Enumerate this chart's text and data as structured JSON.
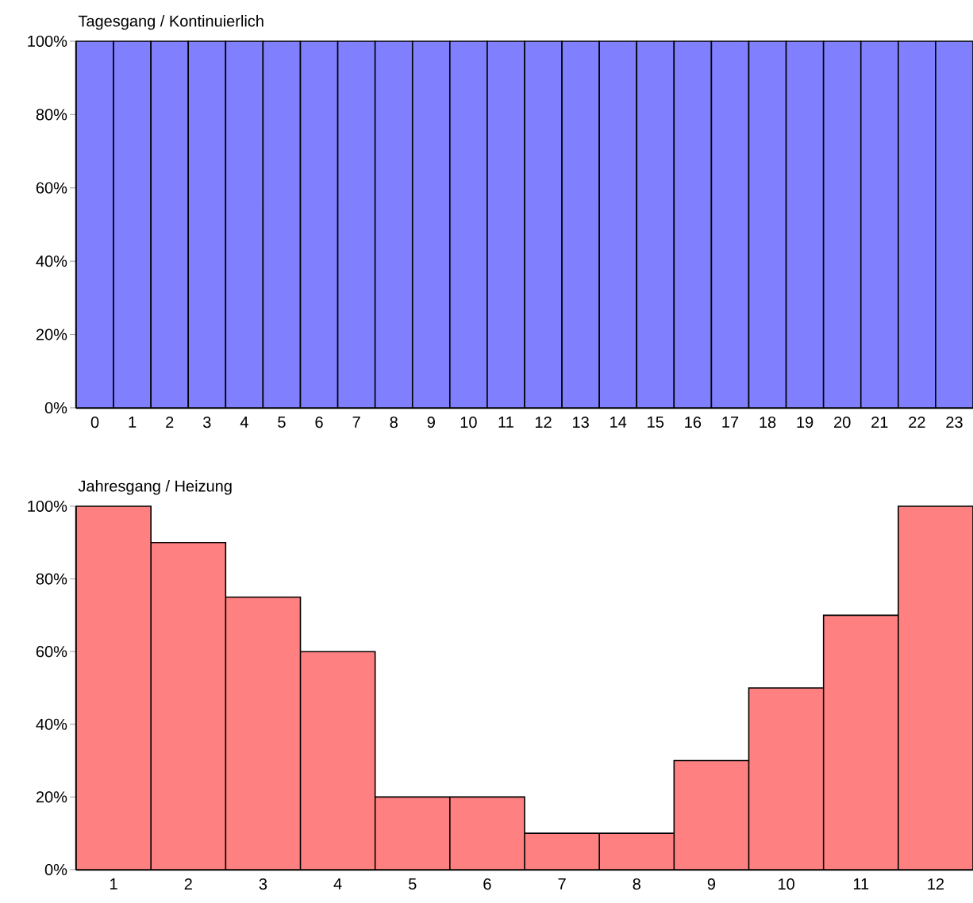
{
  "chart_data": [
    {
      "type": "bar",
      "title": "Tagesgang / Kontinuierlich",
      "categories": [
        "0",
        "1",
        "2",
        "3",
        "4",
        "5",
        "6",
        "7",
        "8",
        "9",
        "10",
        "11",
        "12",
        "13",
        "14",
        "15",
        "16",
        "17",
        "18",
        "19",
        "20",
        "21",
        "22",
        "23"
      ],
      "values": [
        100,
        100,
        100,
        100,
        100,
        100,
        100,
        100,
        100,
        100,
        100,
        100,
        100,
        100,
        100,
        100,
        100,
        100,
        100,
        100,
        100,
        100,
        100,
        100
      ],
      "color": "#8080ff",
      "ylim": [
        0,
        100
      ],
      "yticks": [
        {
          "value": 0,
          "label": "0%"
        },
        {
          "value": 20,
          "label": "20%"
        },
        {
          "value": 40,
          "label": "40%"
        },
        {
          "value": 60,
          "label": "60%"
        },
        {
          "value": 80,
          "label": "80%"
        },
        {
          "value": 100,
          "label": "100%"
        }
      ]
    },
    {
      "type": "bar",
      "title": "Jahresgang / Heizung",
      "categories": [
        "1",
        "2",
        "3",
        "4",
        "5",
        "6",
        "7",
        "8",
        "9",
        "10",
        "11",
        "12"
      ],
      "values": [
        100,
        90,
        75,
        60,
        20,
        20,
        10,
        10,
        30,
        50,
        70,
        100
      ],
      "color": "#ff8080",
      "ylim": [
        0,
        100
      ],
      "yticks": [
        {
          "value": 0,
          "label": "0%"
        },
        {
          "value": 20,
          "label": "20%"
        },
        {
          "value": 40,
          "label": "40%"
        },
        {
          "value": 60,
          "label": "60%"
        },
        {
          "value": 80,
          "label": "80%"
        },
        {
          "value": 100,
          "label": "100%"
        }
      ]
    }
  ]
}
